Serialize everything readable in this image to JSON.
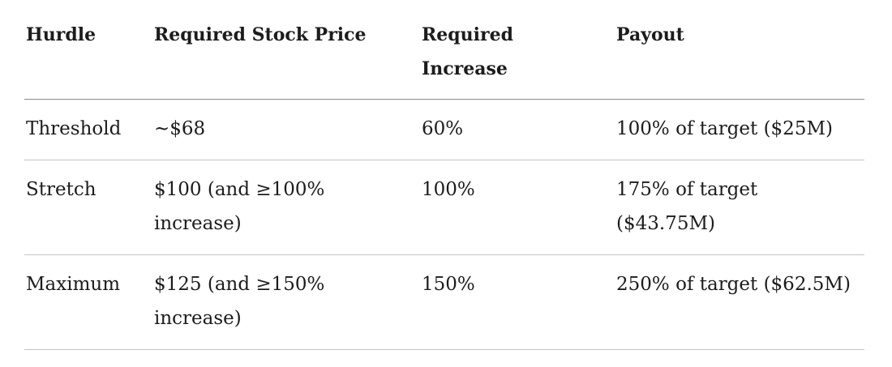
{
  "table": {
    "header": [
      "Hurdle",
      "Required Stock Price",
      "Required Increase",
      "Payout"
    ],
    "rows": [
      [
        "Threshold",
        "~$68",
        "60%",
        "100% of target ($25M)"
      ],
      [
        "Stretch",
        "$100 (and ≥100% increase)",
        "100%",
        "175% of target ($43.75M)"
      ],
      [
        "Maximum",
        "$125 (and ≥150% increase)",
        "150%",
        "250% of target ($62.5M)"
      ]
    ]
  }
}
